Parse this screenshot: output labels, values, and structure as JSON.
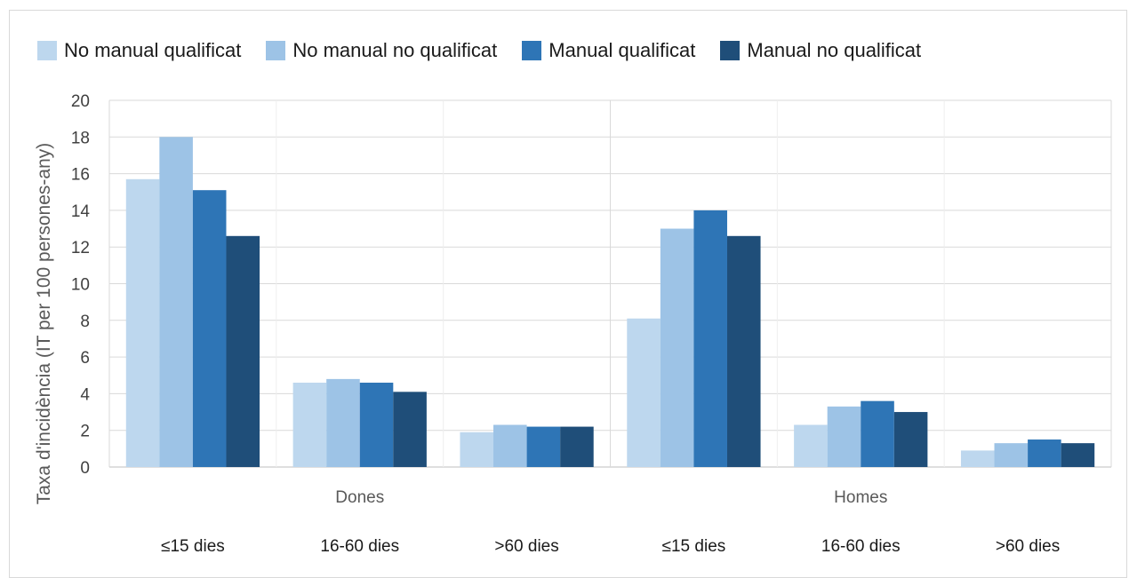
{
  "chart_data": {
    "type": "bar",
    "ylabel": "Taxa d'incidència (IT per 100 persones-any)",
    "ylim": [
      0,
      20
    ],
    "yticks": [
      0,
      2,
      4,
      6,
      8,
      10,
      12,
      14,
      16,
      18,
      20
    ],
    "grid": true,
    "legend_position": "top",
    "groups": [
      "Dones",
      "Homes"
    ],
    "categories": [
      "≤15 dies",
      "16-60 dies",
      ">60 dies",
      "≤15 dies",
      "16-60 dies",
      ">60 dies"
    ],
    "series": [
      {
        "name": "No manual qualificat",
        "color": "#bdd7ee",
        "values": [
          15.7,
          4.6,
          1.9,
          8.1,
          2.3,
          0.9
        ]
      },
      {
        "name": "No manual no qualificat",
        "color": "#9dc3e6",
        "values": [
          18.0,
          4.8,
          2.3,
          13.0,
          3.3,
          1.3
        ]
      },
      {
        "name": "Manual qualificat",
        "color": "#2e75b6",
        "values": [
          15.1,
          4.6,
          2.2,
          14.0,
          3.6,
          1.5
        ]
      },
      {
        "name": "Manual no qualificat",
        "color": "#1f4e79",
        "values": [
          12.6,
          4.1,
          2.2,
          12.6,
          3.0,
          1.3
        ]
      }
    ]
  }
}
